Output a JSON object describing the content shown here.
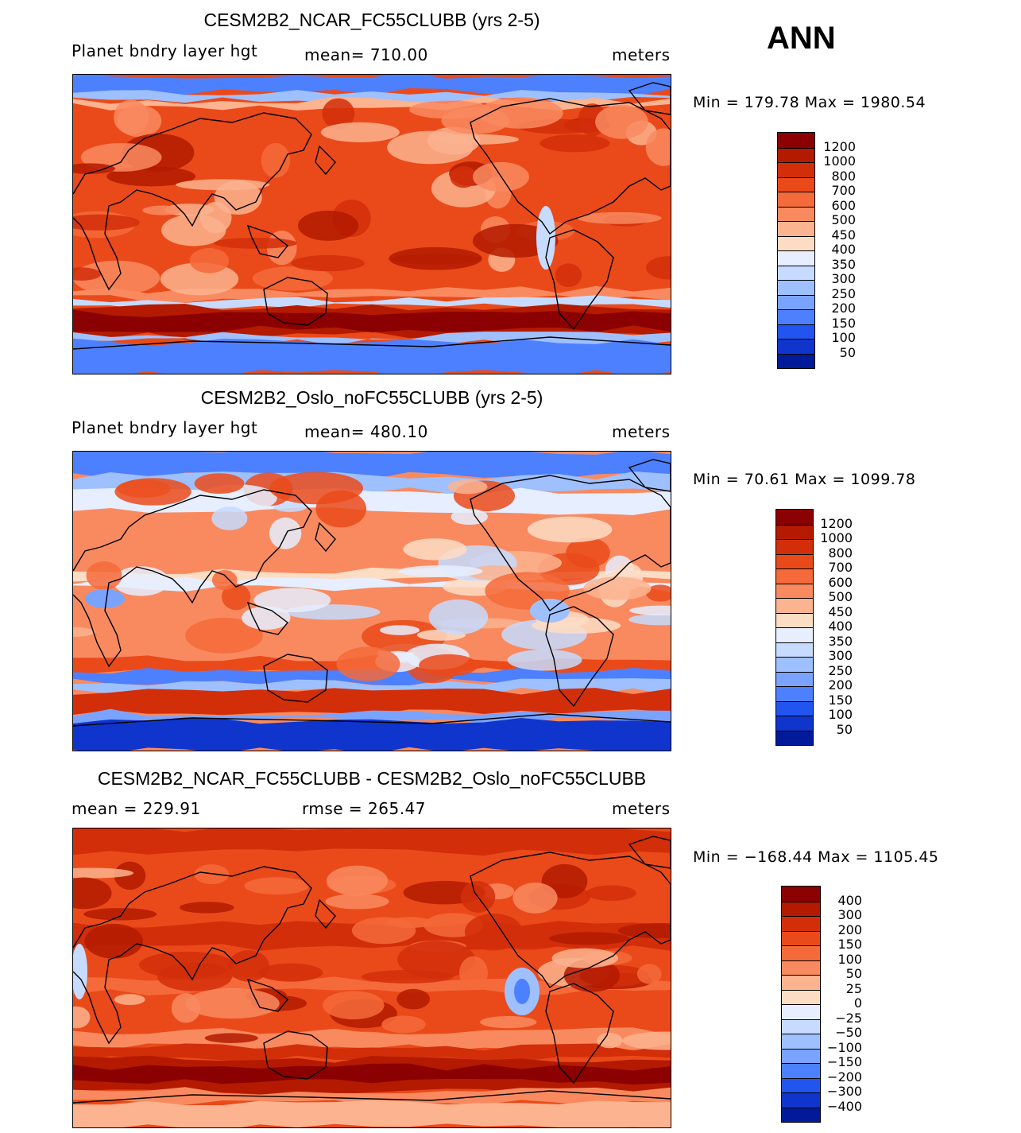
{
  "season": "ANN",
  "panels": [
    {
      "title": "CESM2B2_NCAR_FC55CLUBB (yrs 2-5)",
      "variable": "Planet bndry layer hgt",
      "stat1": "mean=  710.00",
      "stat2": "",
      "units": "meters",
      "minmax": "Min  =  179.78  Max  =  1980.54",
      "colorbar": {
        "labels": [
          "1200",
          "1000",
          "800",
          "700",
          "600",
          "500",
          "450",
          "400",
          "350",
          "300",
          "250",
          "200",
          "150",
          "100",
          "50"
        ],
        "colors": [
          "#8b0000",
          "#b31a00",
          "#d22e0a",
          "#ea4a1a",
          "#f56a3a",
          "#f98a60",
          "#fcb38f",
          "#fddcc4",
          "#e6eeff",
          "#c6dbff",
          "#9fc0ff",
          "#7aa3ff",
          "#4d80ff",
          "#2255f0",
          "#1035cc",
          "#001a99"
        ]
      },
      "map_style": "warm"
    },
    {
      "title": "CESM2B2_Oslo_noFC55CLUBB (yrs 2-5)",
      "variable": "Planet bndry layer hgt",
      "stat1": "mean=  480.10",
      "stat2": "",
      "units": "meters",
      "minmax": "Min  =   70.61  Max  =  1099.78",
      "colorbar": {
        "labels": [
          "1200",
          "1000",
          "800",
          "700",
          "600",
          "500",
          "450",
          "400",
          "350",
          "300",
          "250",
          "200",
          "150",
          "100",
          "50"
        ],
        "colors": [
          "#8b0000",
          "#b31a00",
          "#d22e0a",
          "#ea4a1a",
          "#f56a3a",
          "#f98a60",
          "#fcb38f",
          "#fddcc4",
          "#e6eeff",
          "#c6dbff",
          "#9fc0ff",
          "#7aa3ff",
          "#4d80ff",
          "#2255f0",
          "#1035cc",
          "#001a99"
        ]
      },
      "map_style": "mixed"
    },
    {
      "title": "CESM2B2_NCAR_FC55CLUBB - CESM2B2_Oslo_noFC55CLUBB",
      "variable": "mean  =  229.91",
      "stat1": "",
      "stat2": "rmse  =  265.47",
      "units": "meters",
      "minmax": "Min  = −168.44  Max  =  1105.45",
      "colorbar": {
        "labels": [
          "400",
          "300",
          "200",
          "150",
          "100",
          "50",
          "25",
          "0",
          "−25",
          "−50",
          "−100",
          "−150",
          "−200",
          "−300",
          "−400"
        ],
        "colors": [
          "#8b0000",
          "#b31a00",
          "#d22e0a",
          "#ea4a1a",
          "#f56a3a",
          "#f98a60",
          "#fcb38f",
          "#fddcc4",
          "#e6eeff",
          "#c6dbff",
          "#9fc0ff",
          "#7aa3ff",
          "#4d80ff",
          "#2255f0",
          "#1035cc",
          "#001a99"
        ]
      },
      "map_style": "diff"
    }
  ]
}
